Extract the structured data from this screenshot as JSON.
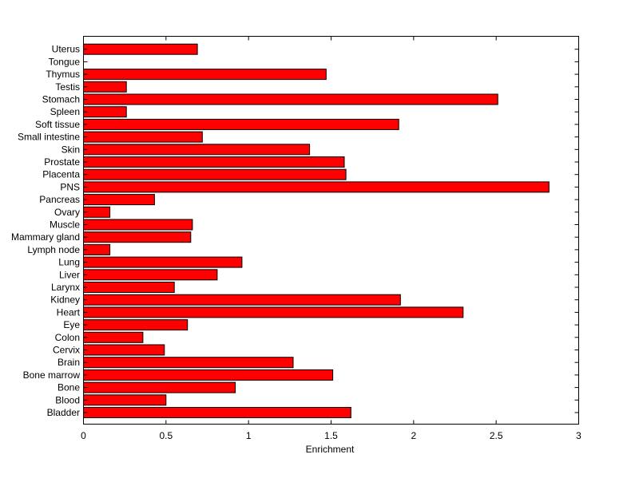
{
  "chart_data": {
    "type": "bar",
    "orientation": "horizontal",
    "xlabel": "Enrichment",
    "ylabel": "",
    "xlim": [
      0,
      3
    ],
    "xticks": [
      "0",
      "0.5",
      "1",
      "1.5",
      "2",
      "2.5",
      "3"
    ],
    "categories": [
      "Bladder",
      "Blood",
      "Bone",
      "Bone marrow",
      "Brain",
      "Cervix",
      "Colon",
      "Eye",
      "Heart",
      "Kidney",
      "Larynx",
      "Liver",
      "Lung",
      "Lymph node",
      "Mammary gland",
      "Muscle",
      "Ovary",
      "Pancreas",
      "PNS",
      "Placenta",
      "Prostate",
      "Skin",
      "Small intestine",
      "Soft tissue",
      "Spleen",
      "Stomach",
      "Testis",
      "Thymus",
      "Tongue",
      "Uterus"
    ],
    "values": [
      1.62,
      0.5,
      0.92,
      1.51,
      1.27,
      0.49,
      0.36,
      0.63,
      2.3,
      1.92,
      0.55,
      0.81,
      0.96,
      0.16,
      0.65,
      0.66,
      0.16,
      0.43,
      2.82,
      1.59,
      1.58,
      1.37,
      0.72,
      1.91,
      0.26,
      2.51,
      0.26,
      1.47,
      0.0,
      0.69
    ],
    "bar_color": "#ff0000",
    "bar_edge_color": "#000000",
    "grid": false,
    "legend": "none"
  }
}
